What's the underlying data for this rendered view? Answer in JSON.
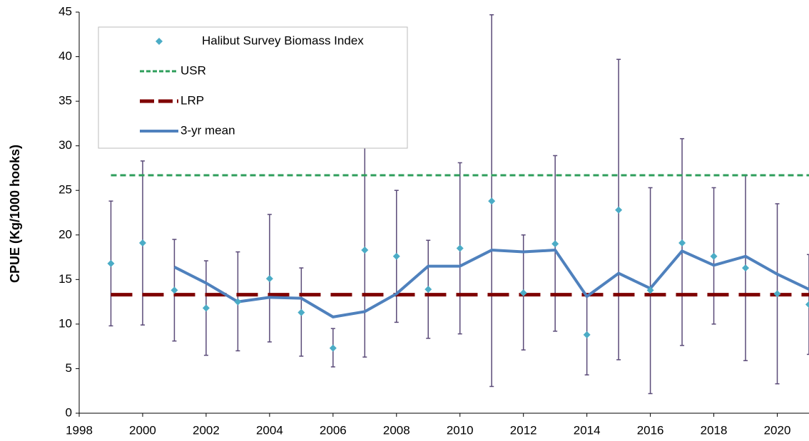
{
  "chart_data": {
    "type": "line",
    "y_label": "CPUE (Kg/1000 hooks)",
    "x": [
      1999,
      2000,
      2001,
      2002,
      2003,
      2004,
      2005,
      2006,
      2007,
      2008,
      2009,
      2010,
      2011,
      2012,
      2013,
      2014,
      2015,
      2016,
      2017,
      2018,
      2019,
      2020,
      2021
    ],
    "series": [
      {
        "name": "Halibut Survey Biomass Index",
        "color": "#4bacc6",
        "error_color": "#5a4a78",
        "values": [
          16.8,
          19.1,
          13.8,
          11.8,
          12.5,
          15.1,
          11.3,
          7.3,
          18.3,
          17.6,
          13.9,
          18.5,
          23.8,
          13.5,
          19.0,
          8.8,
          22.8,
          13.8,
          19.1,
          17.6,
          16.3,
          13.4,
          12.2
        ],
        "lower": [
          9.8,
          9.9,
          8.1,
          6.5,
          7.0,
          8.0,
          6.4,
          5.2,
          6.3,
          10.2,
          8.4,
          8.9,
          3.0,
          7.1,
          9.2,
          4.3,
          6.0,
          2.2,
          7.6,
          10.0,
          5.9,
          3.3,
          6.6
        ],
        "upper": [
          23.8,
          28.3,
          19.5,
          17.1,
          18.1,
          22.3,
          16.3,
          9.5,
          31.0,
          25.0,
          19.4,
          28.1,
          44.7,
          20.0,
          28.9,
          13.2,
          39.7,
          25.3,
          30.8,
          25.3,
          26.7,
          23.5,
          17.8
        ]
      },
      {
        "name": "3-yr mean",
        "color": "#4f81bd",
        "values": [
          null,
          null,
          16.4,
          14.6,
          12.5,
          13.0,
          12.9,
          10.8,
          11.4,
          13.4,
          16.5,
          16.5,
          18.3,
          18.1,
          18.3,
          13.1,
          15.7,
          14.0,
          18.2,
          16.6,
          17.6,
          15.6,
          13.9
        ]
      }
    ],
    "reference_lines": [
      {
        "name": "USR",
        "color": "#2e9e5b",
        "value": 26.7
      },
      {
        "name": "LRP",
        "color": "#7f0000",
        "value": 13.3
      }
    ],
    "xlim": [
      1998,
      2021
    ],
    "xticks": [
      1998,
      2000,
      2002,
      2004,
      2006,
      2008,
      2010,
      2012,
      2014,
      2016,
      2018,
      2020
    ],
    "ylim": [
      0,
      45
    ],
    "yticks": [
      0,
      5,
      10,
      15,
      20,
      25,
      30,
      35,
      40,
      45
    ],
    "grid": false,
    "legend": "top-left"
  }
}
